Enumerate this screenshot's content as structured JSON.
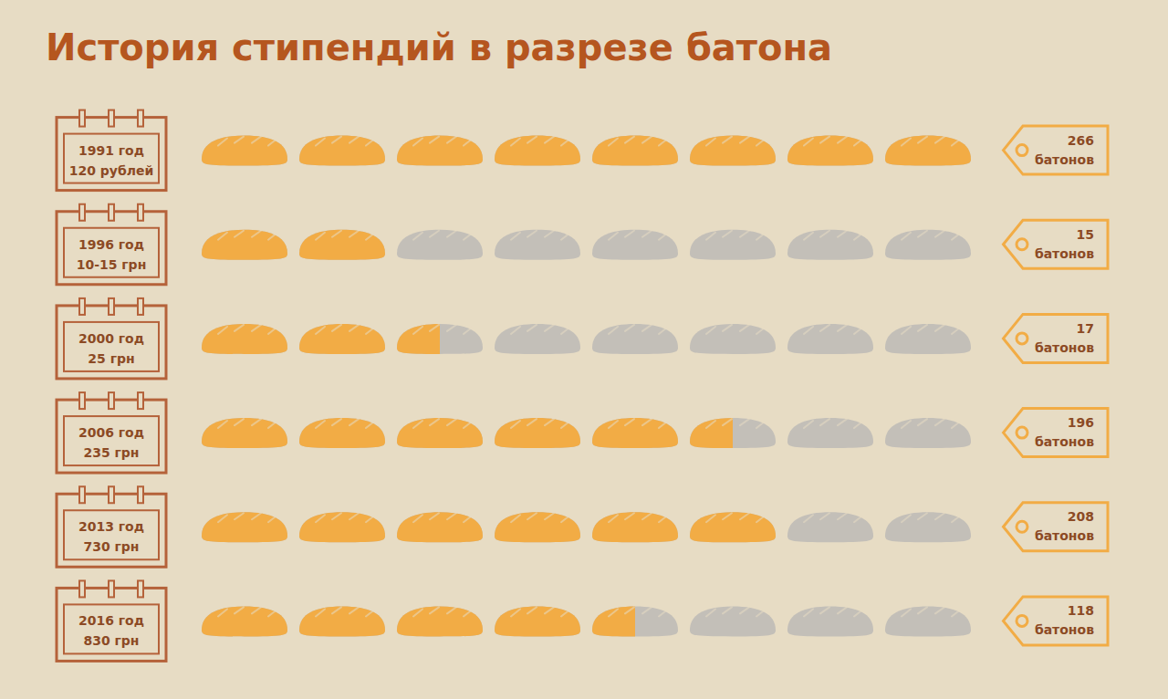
{
  "chart_data": {
    "type": "pictogram",
    "title": "История стипендий в разрезе батона",
    "categories": [
      "1991 год",
      "1996 год",
      "2000 год",
      "2006 год",
      "2013 год",
      "2016 год"
    ],
    "stipends": [
      "120 рублей",
      "10-15 грн",
      "25 грн",
      "235 грн",
      "730 грн",
      "830 грн"
    ],
    "values": [
      266,
      15,
      17,
      196,
      208,
      118
    ],
    "value_labels": [
      "266 батонов",
      "15 батонов",
      "17 батонов",
      "196 батонов",
      "208 батонов",
      "118 батонов"
    ],
    "icon_values": [
      8,
      2,
      2.5,
      5.5,
      6,
      4.5
    ],
    "icon_count": 8,
    "data_labels": true,
    "color": "#f2ac45"
  }
}
